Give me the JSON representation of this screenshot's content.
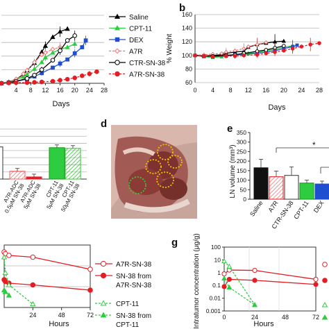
{
  "colors": {
    "saline": "#000000",
    "cpt11": "#2ecc40",
    "dex": "#1f4fd1",
    "a7r": "#ee7070",
    "red": "#e51c23",
    "grid": "#b8b8b8"
  },
  "panel_b": {
    "letter": "b",
    "ylabel": "% Weight"
  },
  "panel_d": {
    "letter": "d"
  },
  "panel_e": {
    "letter": "e",
    "ylabel": "LN volume (mm³)",
    "star": "*"
  },
  "panel_g": {
    "letter": "g",
    "ylabel": "Intratumor concentration (μg/g)"
  },
  "chart_data": [
    {
      "id": "a",
      "type": "line",
      "xlabel": "Days",
      "xlim": [
        0,
        28
      ],
      "xticks": [
        4,
        8,
        12,
        16,
        20,
        24,
        28
      ],
      "legend_position": "right",
      "series": [
        {
          "name": "Saline",
          "x": [
            0,
            2,
            4,
            6,
            7,
            9,
            11,
            12,
            14,
            16,
            18
          ],
          "values": [
            0,
            0.2,
            0.6,
            1.3,
            1.9,
            3.0,
            4.6,
            5.5,
            6.8,
            7.6,
            8.0
          ]
        },
        {
          "name": "CPT-11",
          "x": [
            0,
            2,
            4,
            6,
            7,
            9,
            11,
            12,
            14,
            16,
            18,
            20
          ],
          "values": [
            0,
            0.2,
            0.5,
            1.0,
            1.3,
            2.1,
            3.1,
            3.8,
            4.5,
            5.0,
            5.3,
            5.8
          ]
        },
        {
          "name": "DEX",
          "x": [
            0,
            2,
            4,
            7,
            9,
            11,
            14,
            16,
            18,
            20,
            22,
            23
          ],
          "values": [
            0,
            0.1,
            0.3,
            0.6,
            1.0,
            1.5,
            2.3,
            2.9,
            3.5,
            4.4,
            5.3,
            6.3
          ]
        },
        {
          "name": "A7R",
          "x": [
            0,
            2,
            4,
            6,
            7,
            9,
            11,
            12,
            14,
            16
          ],
          "values": [
            0,
            0.2,
            0.6,
            1.4,
            1.9,
            3.1,
            4.2,
            4.5,
            5.0,
            5.3
          ]
        },
        {
          "name": "CTR-SN-38",
          "x": [
            0,
            2,
            4,
            7,
            9,
            11,
            14,
            16,
            18,
            20
          ],
          "values": [
            0,
            0.1,
            0.3,
            0.7,
            1.2,
            2.0,
            3.4,
            4.8,
            6.3,
            7.0
          ]
        },
        {
          "name": "A7R-SN-38",
          "x": [
            0,
            2,
            4,
            7,
            9,
            11,
            14,
            16,
            18,
            20,
            22,
            24,
            26
          ],
          "values": [
            0,
            0.05,
            0.1,
            0.1,
            0.15,
            0.2,
            0.3,
            0.45,
            0.6,
            0.8,
            1.1,
            1.4,
            1.7
          ]
        }
      ],
      "ylim": [
        0,
        10
      ]
    },
    {
      "id": "b",
      "type": "line",
      "xlabel": "Days",
      "ylabel": "% Weight",
      "xlim": [
        0,
        28
      ],
      "ylim": [
        60,
        160
      ],
      "xticks": [
        0,
        4,
        8,
        12,
        16,
        20,
        24,
        28
      ],
      "yticks": [
        60,
        80,
        100,
        120,
        140,
        160
      ],
      "series": [
        {
          "name": "Saline",
          "x": [
            0,
            2,
            4,
            6,
            7,
            9,
            11,
            12,
            14,
            16,
            18,
            20
          ],
          "values": [
            100,
            99,
            100,
            101,
            103,
            105,
            106,
            112,
            116,
            118,
            120,
            121
          ]
        },
        {
          "name": "CPT-11",
          "x": [
            0,
            2,
            4,
            6,
            7,
            9,
            11,
            12,
            14,
            16,
            18,
            20,
            22
          ],
          "values": [
            100,
            98,
            97,
            98,
            100,
            101,
            101,
            103,
            104,
            107,
            109,
            112,
            114
          ]
        },
        {
          "name": "DEX",
          "x": [
            0,
            2,
            4,
            7,
            9,
            11,
            14,
            16,
            18,
            20,
            22,
            23
          ],
          "values": [
            100,
            99,
            98,
            99,
            101,
            102,
            103,
            105,
            107,
            110,
            113,
            115
          ]
        },
        {
          "name": "A7R",
          "x": [
            0,
            2,
            4,
            6,
            7,
            9,
            11,
            12,
            14,
            16
          ],
          "values": [
            100,
            101,
            102,
            103,
            105,
            107,
            110,
            113,
            116,
            119
          ]
        },
        {
          "name": "CTR-SN-38",
          "x": [
            0,
            2,
            4,
            7,
            9,
            11,
            14,
            16,
            18,
            20
          ],
          "values": [
            100,
            99,
            99,
            100,
            101,
            103,
            106,
            108,
            111,
            114
          ]
        },
        {
          "name": "A7R-SN-38",
          "x": [
            0,
            2,
            4,
            7,
            9,
            11,
            14,
            16,
            18,
            20,
            22,
            24,
            26,
            28
          ],
          "values": [
            100,
            99,
            98,
            99,
            99,
            100,
            101,
            103,
            105,
            107,
            110,
            113,
            116,
            118
          ]
        }
      ]
    },
    {
      "id": "c",
      "type": "bar",
      "categories": [
        "A7R-ADC 0.5μM SN-38",
        "A7R-ADC 5μM SN-38",
        "CPT-11 5μM SN-38",
        "CPT-11 50μM SN-38"
      ],
      "values": [
        22,
        6,
        88,
        86
      ],
      "ylim": [
        0,
        140
      ]
    },
    {
      "id": "e",
      "type": "bar",
      "ylabel": "LN volume (mm³)",
      "categories": [
        "Saline",
        "A7R",
        "CTR-SN-38",
        "CPT-11",
        "DEX"
      ],
      "values": [
        165,
        118,
        125,
        85,
        80
      ],
      "errors": [
        45,
        30,
        45,
        15,
        15
      ],
      "ylim": [
        0,
        350
      ],
      "yticks": [
        0,
        50,
        100,
        150,
        200,
        250,
        300,
        350
      ]
    },
    {
      "id": "f",
      "type": "line",
      "xlabel": "Hours",
      "xticks": [
        0,
        24,
        48,
        72
      ],
      "xlim": [
        0,
        72
      ],
      "legend_position": "right",
      "series": [
        {
          "name": "A7R-SN-38",
          "x": [
            0,
            1,
            4,
            24,
            72
          ],
          "values": [
            3.2,
            3.1,
            3.0,
            2.9,
            2.2
          ]
        },
        {
          "name": "SN-38 from A7R-SN-38",
          "x": [
            0,
            1,
            4,
            24,
            72
          ],
          "values": [
            1.6,
            1.5,
            1.4,
            1.3,
            1.0
          ]
        },
        {
          "name": "CPT-11",
          "x": [
            0,
            1,
            4,
            24
          ],
          "values": [
            2.9,
            2.0,
            1.3,
            0.2
          ]
        },
        {
          "name": "SN-38 from CPT-11",
          "x": [
            0,
            1,
            4
          ],
          "values": [
            1.0,
            0.9,
            0.7
          ]
        }
      ]
    },
    {
      "id": "g",
      "type": "line",
      "yscale": "log",
      "xlabel": "Hours",
      "ylabel": "Intratumor concentration (μg/g)",
      "xlim": [
        0,
        72
      ],
      "xticks": [
        0,
        24,
        48,
        72
      ],
      "ylim": [
        0.001,
        100
      ],
      "yticks": [
        "0.001",
        "0.01",
        "0.1",
        "1",
        "10",
        "100"
      ],
      "series": [
        {
          "name": "A7R-SN-38",
          "x": [
            0,
            4,
            24,
            72
          ],
          "values": [
            0.8,
            1.6,
            1.5,
            0.3
          ]
        },
        {
          "name": "SN-38 from A7R-SN-38",
          "x": [
            0,
            4,
            24,
            72
          ],
          "values": [
            0.08,
            0.3,
            0.25,
            0.12
          ]
        },
        {
          "name": "CPT-11",
          "x": [
            0,
            4,
            24
          ],
          "values": [
            8,
            3,
            0.003
          ]
        },
        {
          "name": "SN-38 from CPT-11",
          "x": [
            0,
            4,
            24
          ],
          "values": [
            0.35,
            0.07,
            0.003
          ]
        }
      ]
    }
  ]
}
